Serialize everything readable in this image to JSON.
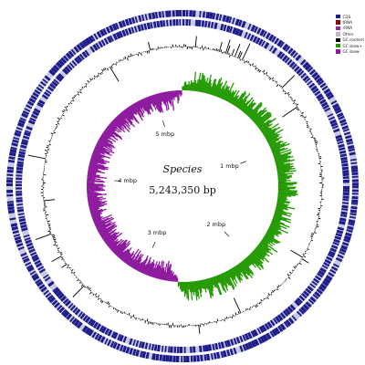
{
  "center": {
    "species": "Species",
    "length_label": "5,243,350 bp"
  },
  "genome_length_bp": 5243350,
  "scale_ticks": [
    {
      "label": "1 mbp",
      "mbp": 1
    },
    {
      "label": "2 mbp",
      "mbp": 2
    },
    {
      "label": "3 mbp",
      "mbp": 3
    },
    {
      "label": "4 mbp",
      "mbp": 4
    },
    {
      "label": "5 mbp",
      "mbp": 5
    }
  ],
  "legend": [
    {
      "label": "CDS",
      "color": "#1c1c8c"
    },
    {
      "label": "tRNA",
      "color": "#8b0000"
    },
    {
      "label": "rRNA",
      "color": "#a020a0"
    },
    {
      "label": "Other",
      "color": "#bdbdbd"
    },
    {
      "label": "GC content",
      "color": "#000000"
    },
    {
      "label": "GC skew+",
      "color": "#229900"
    },
    {
      "label": "GC skew-",
      "color": "#8e1a9e"
    }
  ],
  "tracks": [
    {
      "name": "CDS forward strand",
      "feature": "CDS",
      "color": "#1c1c8c"
    },
    {
      "name": "CDS reverse strand",
      "feature": "CDS",
      "color": "#1c1c8c"
    },
    {
      "name": "GC content",
      "color": "#000000"
    },
    {
      "name": "GC skew",
      "positive_color": "#229900",
      "negative_color": "#8e1a9e"
    }
  ]
}
